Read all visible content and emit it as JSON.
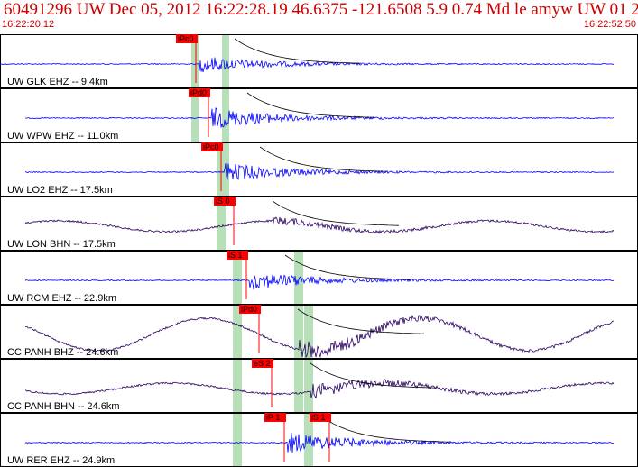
{
  "event_header": "60491296 UW Dec 05, 2012 16:22:28.19   46.6375 -121.6508  5.9 0.74 Md le amyw UW 01    2",
  "time_start": "16:22:20.12",
  "time_end": "16:22:52.50",
  "colors": {
    "title": "#cc0000",
    "pick": "#ff0000",
    "wave_blue": "#0000ff",
    "wave_dark": "#2a0060",
    "window": "#b8e0b8"
  },
  "channels": [
    {
      "label": "UW GLK EHZ -- 9.4km",
      "pick": "iPc0",
      "wave": "blue",
      "amp": 0.7,
      "onset": 0.31,
      "kind": "eq"
    },
    {
      "label": "UW WPW EHZ -- 11.0km",
      "pick": "iPd0",
      "wave": "blue",
      "amp": 0.9,
      "onset": 0.33,
      "kind": "eq"
    },
    {
      "label": "UW LO2 EHZ -- 17.5km",
      "pick": "iPc0",
      "wave": "blue",
      "amp": 0.8,
      "onset": 0.35,
      "kind": "eq"
    },
    {
      "label": "UW LON BHN -- 17.5km",
      "pick": "iS 0",
      "wave": "dark",
      "amp": 0.35,
      "onset": 0.42,
      "kind": "bb"
    },
    {
      "label": "UW RCM EHZ -- 22.9km",
      "pick": "iS 1",
      "wave": "blue",
      "amp": 0.8,
      "onset": 0.5,
      "kind": "eq"
    },
    {
      "label": "CC PANH BHZ -- 24.6km",
      "pick": "iPd0",
      "wave": "dark",
      "amp": 1.0,
      "onset": 0.38,
      "kind": "bb"
    },
    {
      "label": "CC PANH BHN -- 24.6km",
      "pick": "eS 2",
      "wave": "dark",
      "amp": 0.7,
      "onset": 0.45,
      "kind": "bb"
    },
    {
      "label": "UW RER EHZ -- 24.9km",
      "pick": "iP 1",
      "pick2": "iS 1",
      "wave": "blue",
      "amp": 0.9,
      "onset": 0.4,
      "kind": "eq"
    }
  ]
}
